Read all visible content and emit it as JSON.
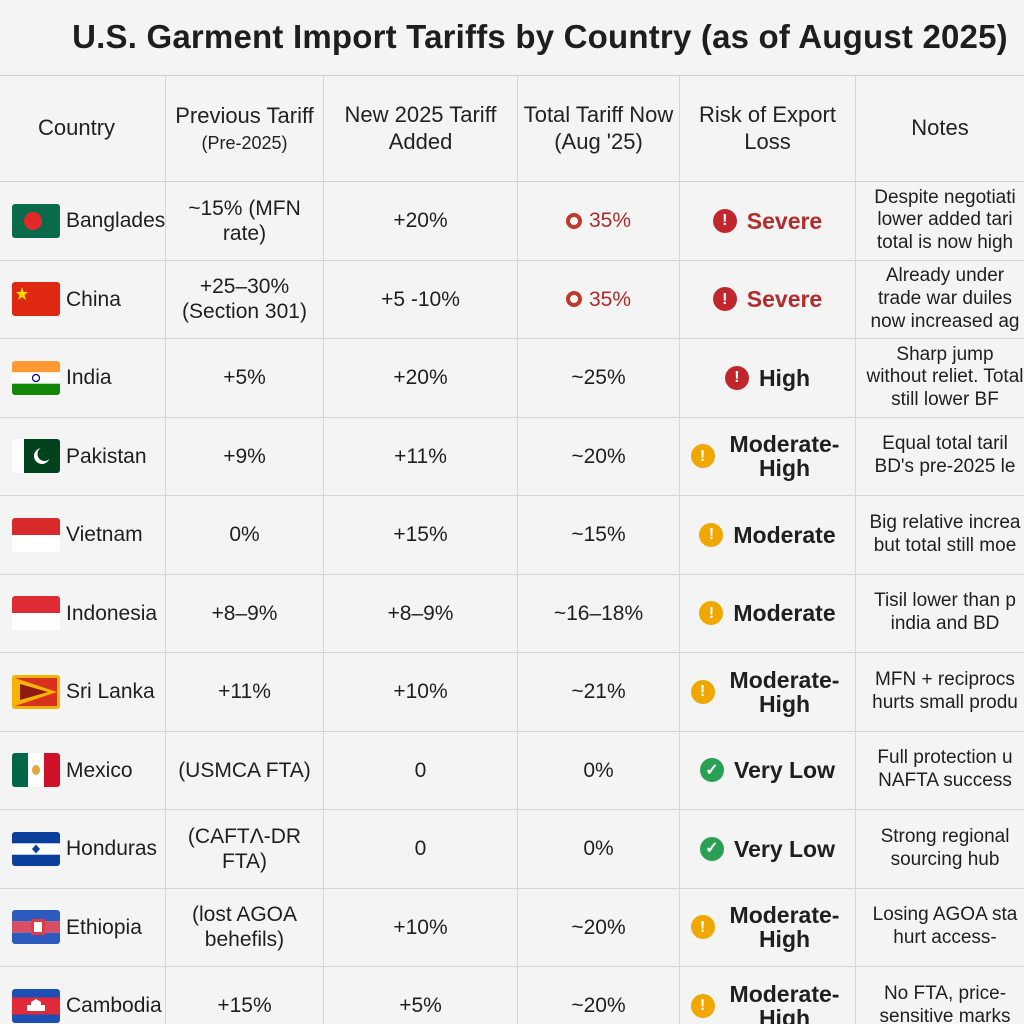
{
  "title": "U.S. Garment Import Tariffs by Country (as of August 2025)",
  "columns": {
    "country": "Country",
    "previous": "Previous Tariff",
    "previous_sub": "(Pre-2025)",
    "new_added": "New 2025 Tariff Added",
    "total": "Total Tariff Now (Aug '25)",
    "risk": "Risk of Export Loss",
    "notes": "Notes"
  },
  "colors": {
    "severe": "#c0272d",
    "moderate": "#f0a800",
    "low": "#2aa055"
  },
  "rows": [
    {
      "country": "Bangladesh",
      "flag": "bangladesh-flag",
      "previous": "~15% (MFN rate)",
      "added": "+20%",
      "total": "35%",
      "total_marked": true,
      "risk": "Severe",
      "risk_level": "severe",
      "notes": "Despite negotiati lower added tari total is now high"
    },
    {
      "country": "China",
      "flag": "china-flag",
      "previous": "+25–30% (Section 301)",
      "added": "+5 -10%",
      "total": "35%",
      "total_marked": true,
      "risk": "Severe",
      "risk_level": "severe",
      "notes": "Already under trade war duiles now increased ag"
    },
    {
      "country": "India",
      "flag": "india-flag",
      "previous": "+5%",
      "added": "+20%",
      "total": "~25%",
      "total_marked": false,
      "risk": "High",
      "risk_level": "high",
      "notes": "Sharp jump without reliet. Total still lower BF"
    },
    {
      "country": "Pakistan",
      "flag": "pakistan-flag",
      "previous": "+9%",
      "added": "+11%",
      "total": "~20%",
      "total_marked": false,
      "risk": "Moderate-High",
      "risk_level": "moderate",
      "notes": "Equal total taril BD's pre-2025 le"
    },
    {
      "country": "Vietnam",
      "flag": "vietnam-flag",
      "previous": "0%",
      "added": "+15%",
      "total": "~15%",
      "total_marked": false,
      "risk": "Moderate",
      "risk_level": "moderate",
      "notes": "Big relative increa but total still moe"
    },
    {
      "country": "Indonesia",
      "flag": "indonesia-flag",
      "previous": "+8–9%",
      "added": "+8–9%",
      "total": "~16–18%",
      "total_marked": false,
      "risk": "Moderate",
      "risk_level": "moderate",
      "notes": "Tisil lower than p india and BD"
    },
    {
      "country": "Sri Lanka",
      "flag": "sri-lanka-flag",
      "previous": "+11%",
      "added": "+10%",
      "total": "~21%",
      "total_marked": false,
      "risk": "Moderate-High",
      "risk_level": "moderate",
      "notes": "MFN + reciprocs hurts small produ"
    },
    {
      "country": "Mexico",
      "flag": "mexico-flag",
      "previous": "(USMCA FTA)",
      "added": "0",
      "total": "0%",
      "total_marked": false,
      "risk": "Very Low",
      "risk_level": "low",
      "notes": "Full protection u NAFTA success"
    },
    {
      "country": "Honduras",
      "flag": "honduras-flag",
      "previous": "(CAFTΛ-DR FTA)",
      "added": "0",
      "total": "0%",
      "total_marked": false,
      "risk": "Very Low",
      "risk_level": "low",
      "notes": "Strong regional sourcing hub"
    },
    {
      "country": "Ethiopia",
      "flag": "ethiopia-flag",
      "previous": "(lost AGOA behefils)",
      "added": "+10%",
      "total": "~20%",
      "total_marked": false,
      "risk": "Moderate-High",
      "risk_level": "moderate",
      "notes": "Losing AGOA sta hurt access-"
    },
    {
      "country": "Cambodia",
      "flag": "cambodia-flag",
      "previous": "+15%",
      "added": "+5%",
      "total": "~20%",
      "total_marked": false,
      "risk": "Moderate-High",
      "risk_level": "moderate",
      "notes": "No FTA, price- sensitive marks"
    }
  ]
}
